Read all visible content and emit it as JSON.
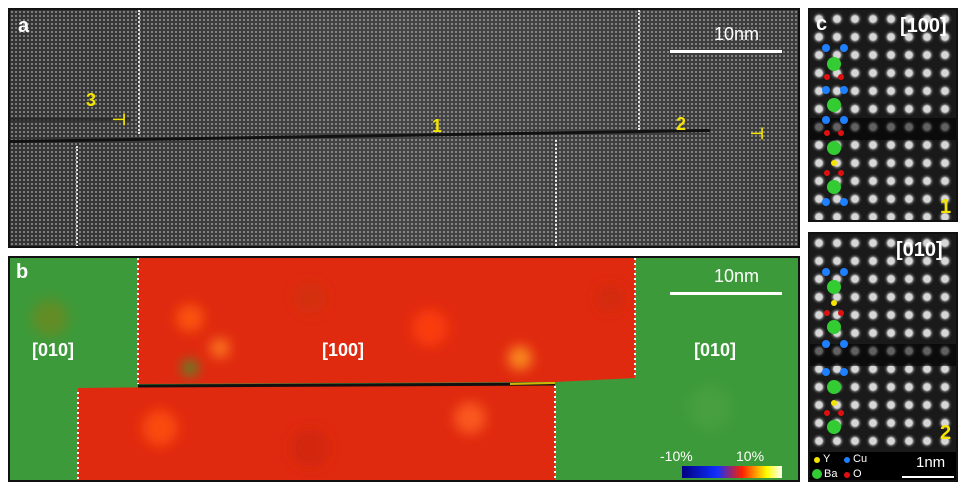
{
  "panel_a": {
    "label": "a",
    "scale_label": "10nm",
    "markers": [
      "1",
      "2",
      "3"
    ]
  },
  "panel_b": {
    "label": "b",
    "scale_label": "10nm",
    "regions": [
      "[010]",
      "[100]",
      "[010]"
    ],
    "colorbar": {
      "min_label": "-10%",
      "max_label": "10%",
      "colors": [
        "#000080",
        "#1030ff",
        "#ff2000",
        "#ffff00",
        "#ffffff"
      ]
    }
  },
  "panel_c1": {
    "label": "c",
    "orientation": "[100]",
    "marker": "1"
  },
  "panel_c2": {
    "orientation": "[010]",
    "marker": "2",
    "legend": [
      {
        "symbol": "Y",
        "color": "#f5e400"
      },
      {
        "symbol": "Cu",
        "color": "#1e7fff"
      },
      {
        "symbol": "Ba",
        "color": "#33cc33"
      },
      {
        "symbol": "O",
        "color": "#e01010"
      }
    ],
    "scale_label": "1nm"
  }
}
